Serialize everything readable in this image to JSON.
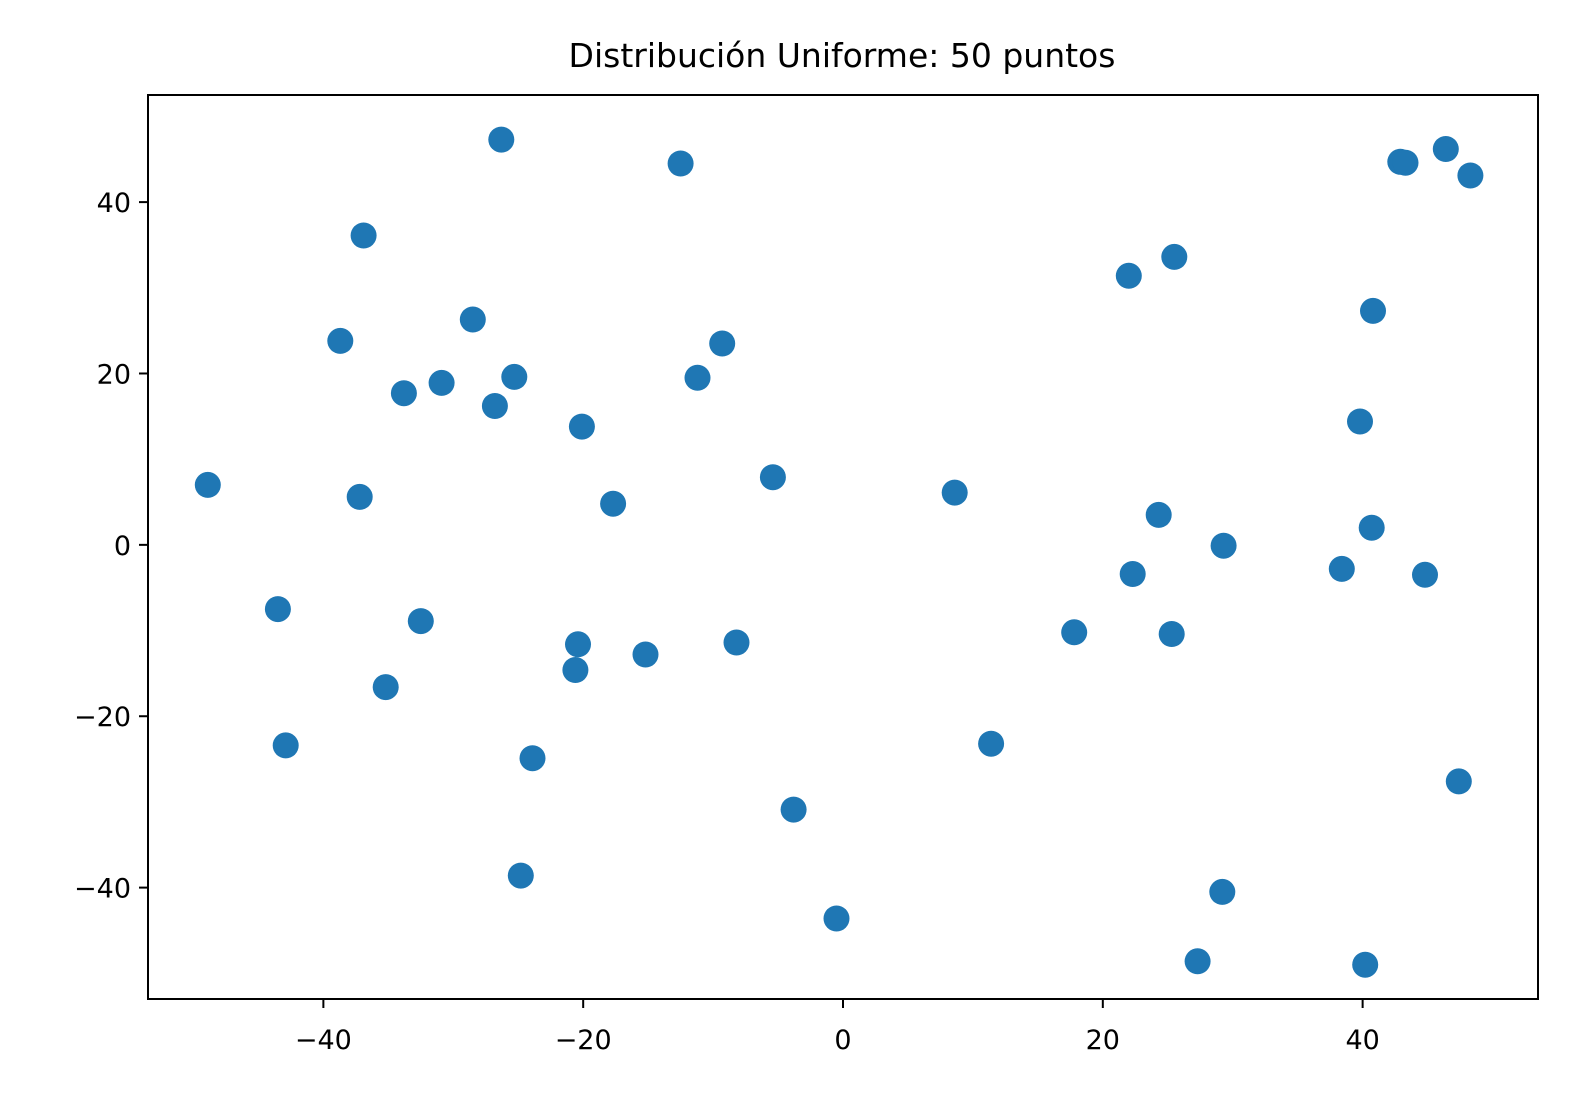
{
  "chart_data": {
    "type": "scatter",
    "title": "Distribución Uniforme: 50 puntos",
    "xlabel": "",
    "ylabel": "",
    "xlim": [
      -53.5,
      53.5
    ],
    "ylim": [
      -53,
      52.5
    ],
    "x_ticks": [
      -40,
      -20,
      0,
      20,
      40
    ],
    "y_ticks": [
      -40,
      -20,
      0,
      20,
      40
    ],
    "x_tick_labels": [
      "−40",
      "−20",
      "0",
      "20",
      "40"
    ],
    "y_tick_labels": [
      "−40",
      "−20",
      "0",
      "20",
      "40"
    ],
    "grid": false,
    "legend": "none",
    "marker_color": "#1f77b4",
    "series": [
      {
        "points": [
          {
            "x": -48.9,
            "y": 7.0
          },
          {
            "x": -43.5,
            "y": -7.5
          },
          {
            "x": -42.9,
            "y": -23.4
          },
          {
            "x": -38.7,
            "y": 23.8
          },
          {
            "x": -36.9,
            "y": 36.1
          },
          {
            "x": -37.2,
            "y": 5.6
          },
          {
            "x": -35.2,
            "y": -16.6
          },
          {
            "x": -33.8,
            "y": 17.7
          },
          {
            "x": -32.5,
            "y": -8.9
          },
          {
            "x": -30.9,
            "y": 18.9
          },
          {
            "x": -28.5,
            "y": 26.3
          },
          {
            "x": -26.8,
            "y": 16.2
          },
          {
            "x": -26.3,
            "y": 47.3
          },
          {
            "x": -25.3,
            "y": 19.6
          },
          {
            "x": -24.8,
            "y": -38.6
          },
          {
            "x": -23.9,
            "y": -24.9
          },
          {
            "x": -20.1,
            "y": 13.8
          },
          {
            "x": -20.4,
            "y": -11.6
          },
          {
            "x": -20.6,
            "y": -14.6
          },
          {
            "x": -17.7,
            "y": 4.8
          },
          {
            "x": -15.2,
            "y": -12.8
          },
          {
            "x": -12.5,
            "y": 44.5
          },
          {
            "x": -11.2,
            "y": 19.5
          },
          {
            "x": -9.3,
            "y": 23.5
          },
          {
            "x": -8.2,
            "y": -11.4
          },
          {
            "x": -5.4,
            "y": 7.9
          },
          {
            "x": -3.8,
            "y": -30.9
          },
          {
            "x": -0.5,
            "y": -43.6
          },
          {
            "x": 8.6,
            "y": 6.1
          },
          {
            "x": 11.4,
            "y": -23.2
          },
          {
            "x": 17.8,
            "y": -10.2
          },
          {
            "x": 22.0,
            "y": 31.4
          },
          {
            "x": 22.3,
            "y": -3.4
          },
          {
            "x": 24.3,
            "y": 3.5
          },
          {
            "x": 25.5,
            "y": 33.6
          },
          {
            "x": 25.3,
            "y": -10.4
          },
          {
            "x": 27.3,
            "y": -48.6
          },
          {
            "x": 29.2,
            "y": -40.5
          },
          {
            "x": 29.3,
            "y": -0.1
          },
          {
            "x": 38.4,
            "y": -2.8
          },
          {
            "x": 39.8,
            "y": 14.4
          },
          {
            "x": 40.2,
            "y": -49.0
          },
          {
            "x": 40.7,
            "y": 2.0
          },
          {
            "x": 40.8,
            "y": 27.3
          },
          {
            "x": 42.9,
            "y": 44.7
          },
          {
            "x": 43.3,
            "y": 44.6
          },
          {
            "x": 44.8,
            "y": -3.5
          },
          {
            "x": 46.4,
            "y": 46.2
          },
          {
            "x": 47.4,
            "y": -27.6
          },
          {
            "x": 48.3,
            "y": 43.1
          }
        ]
      }
    ]
  }
}
